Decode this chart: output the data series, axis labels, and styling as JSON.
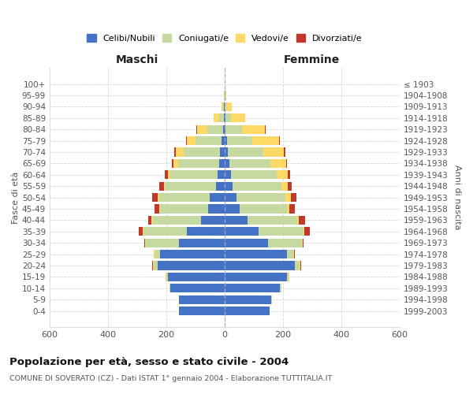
{
  "age_groups": [
    "100+",
    "95-99",
    "90-94",
    "85-89",
    "80-84",
    "75-79",
    "70-74",
    "65-69",
    "60-64",
    "55-59",
    "50-54",
    "45-49",
    "40-44",
    "35-39",
    "30-34",
    "25-29",
    "20-24",
    "15-19",
    "10-14",
    "5-9",
    "0-4"
  ],
  "birth_years": [
    "≤ 1903",
    "1904-1908",
    "1909-1913",
    "1914-1918",
    "1919-1923",
    "1924-1928",
    "1929-1933",
    "1934-1938",
    "1939-1943",
    "1944-1948",
    "1949-1953",
    "1954-1958",
    "1959-1963",
    "1964-1968",
    "1969-1973",
    "1974-1978",
    "1979-1983",
    "1984-1988",
    "1989-1993",
    "1994-1998",
    "1999-2003"
  ],
  "maschi": {
    "celibi": [
      0,
      0,
      1,
      3,
      5,
      10,
      15,
      18,
      25,
      30,
      50,
      55,
      80,
      130,
      155,
      220,
      230,
      195,
      185,
      155,
      155
    ],
    "coniugati": [
      0,
      1,
      4,
      15,
      55,
      90,
      125,
      140,
      160,
      175,
      175,
      165,
      168,
      148,
      115,
      18,
      12,
      4,
      4,
      2,
      0
    ],
    "vedovi": [
      0,
      2,
      5,
      18,
      35,
      28,
      28,
      18,
      8,
      4,
      4,
      3,
      2,
      2,
      2,
      4,
      4,
      2,
      0,
      0,
      0
    ],
    "divorziati": [
      0,
      0,
      0,
      2,
      2,
      4,
      4,
      4,
      13,
      14,
      18,
      18,
      13,
      13,
      4,
      2,
      2,
      0,
      0,
      0,
      0
    ]
  },
  "femmine": {
    "nubili": [
      0,
      0,
      1,
      4,
      4,
      8,
      12,
      18,
      22,
      28,
      42,
      52,
      80,
      118,
      148,
      215,
      240,
      215,
      190,
      160,
      155
    ],
    "coniugate": [
      0,
      2,
      6,
      18,
      56,
      88,
      122,
      138,
      158,
      168,
      168,
      162,
      168,
      152,
      118,
      22,
      18,
      4,
      4,
      2,
      0
    ],
    "vedove": [
      0,
      4,
      18,
      48,
      78,
      90,
      70,
      55,
      36,
      22,
      18,
      8,
      6,
      4,
      2,
      2,
      2,
      2,
      0,
      0,
      0
    ],
    "divorziate": [
      0,
      0,
      0,
      2,
      2,
      4,
      4,
      4,
      8,
      13,
      18,
      18,
      22,
      18,
      4,
      2,
      2,
      0,
      0,
      0,
      0
    ]
  },
  "colors": {
    "celibi": "#4472c4",
    "coniugati": "#c5d9a0",
    "vedovi": "#ffd966",
    "divorziati": "#c0392b"
  },
  "xlim": 600,
  "title": "Popolazione per età, sesso e stato civile - 2004",
  "subtitle": "COMUNE DI SOVERATO (CZ) - Dati ISTAT 1° gennaio 2004 - Elaborazione TUTTITALIA.IT",
  "maschi_label": "Maschi",
  "femmine_label": "Femmine",
  "ylabel": "Fasce di età",
  "ylabel_right": "Anni di nascita",
  "legend_labels": [
    "Celibi/Nubili",
    "Coniugati/e",
    "Vedovi/e",
    "Divorziati/e"
  ],
  "background_color": "#ffffff",
  "grid_color": "#cccccc"
}
